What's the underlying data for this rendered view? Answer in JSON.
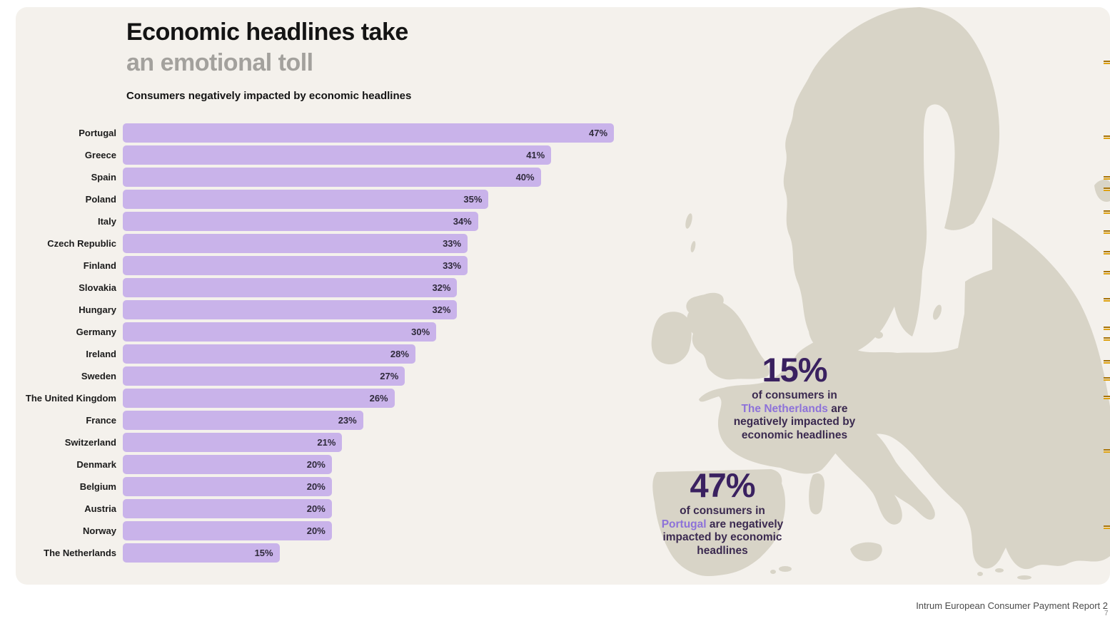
{
  "panel": {
    "title_line1": "Economic headlines take",
    "title_line2": "an emotional toll",
    "subtitle": "Consumers negatively impacted by economic headlines"
  },
  "chart_data": {
    "type": "bar",
    "orientation": "horizontal",
    "title": "Consumers negatively impacted by economic headlines",
    "unit": "%",
    "categories": [
      "Portugal",
      "Greece",
      "Spain",
      "Poland",
      "Italy",
      "Czech Republic",
      "Finland",
      "Slovakia",
      "Hungary",
      "Germany",
      "Ireland",
      "Sweden",
      "The United Kingdom",
      "France",
      "Switzerland",
      "Denmark",
      "Belgium",
      "Austria",
      "Norway",
      "The Netherlands"
    ],
    "values": [
      47,
      41,
      40,
      35,
      34,
      33,
      33,
      32,
      32,
      30,
      28,
      27,
      26,
      23,
      21,
      20,
      20,
      20,
      20,
      15
    ],
    "value_labels": [
      "47%",
      "41%",
      "40%",
      "35%",
      "34%",
      "33%",
      "33%",
      "32%",
      "32%",
      "30%",
      "28%",
      "27%",
      "26%",
      "23%",
      "21%",
      "20%",
      "20%",
      "20%",
      "20%",
      "15%"
    ],
    "xlim": [
      0,
      50
    ],
    "grid": false,
    "legend": null,
    "bar_color": "#c9b3ea",
    "value_labels_position": "inside-end"
  },
  "callouts": [
    {
      "id": "netherlands",
      "value": "15%",
      "intro": "of consumers in",
      "highlight": "The Netherlands",
      "after_highlight": "are",
      "line3": "negatively impacted by",
      "line4": "economic headlines"
    },
    {
      "id": "portugal",
      "value": "47%",
      "intro": "of consumers in",
      "highlight": "Portugal",
      "after_highlight": "are negatively",
      "line3": "impacted by economic",
      "line4": "headlines"
    }
  ],
  "map": {
    "region": "Europe",
    "land_color": "#d8d4c7",
    "background": "#f4f1ec"
  },
  "footer": {
    "source": "Intrum European Consumer Payment Report 2",
    "page_mark": "7"
  },
  "colors": {
    "panel_background": "#f4f1ec",
    "bar_purple": "#c9b3ea",
    "accent_purple": "#8d72d9",
    "dark_purple": "#3a2160",
    "title_gray": "#a3a19d",
    "edge_tick_orange": "#dfa212"
  },
  "decorations": {
    "edge_tick_y": [
      85,
      190,
      247,
      263,
      295,
      323,
      352,
      380,
      418,
      458,
      473,
      505,
      529,
      555,
      630,
      737
    ]
  }
}
